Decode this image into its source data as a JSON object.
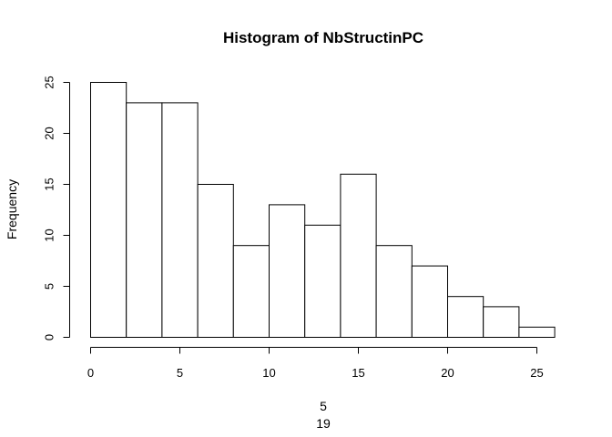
{
  "chart_data": {
    "type": "bar",
    "title": "Histogram of NbStructinPC",
    "ylabel": "Frequency",
    "xlabel_lines": [
      "5",
      "19"
    ],
    "bins": [
      [
        0,
        2
      ],
      [
        2,
        4
      ],
      [
        4,
        6
      ],
      [
        6,
        8
      ],
      [
        8,
        10
      ],
      [
        10,
        12
      ],
      [
        12,
        14
      ],
      [
        14,
        16
      ],
      [
        16,
        18
      ],
      [
        18,
        20
      ],
      [
        20,
        22
      ],
      [
        22,
        24
      ],
      [
        24,
        26
      ]
    ],
    "values": [
      25,
      23,
      23,
      15,
      9,
      13,
      11,
      16,
      9,
      7,
      4,
      3,
      1
    ],
    "xlim": [
      0,
      25
    ],
    "ylim": [
      0,
      25
    ],
    "xticks": [
      0,
      5,
      10,
      15,
      20,
      25
    ],
    "yticks": [
      0,
      5,
      10,
      15,
      20,
      25
    ],
    "grid": false,
    "colors": {
      "bar_fill": "#ffffff",
      "bar_stroke": "#000000"
    }
  }
}
